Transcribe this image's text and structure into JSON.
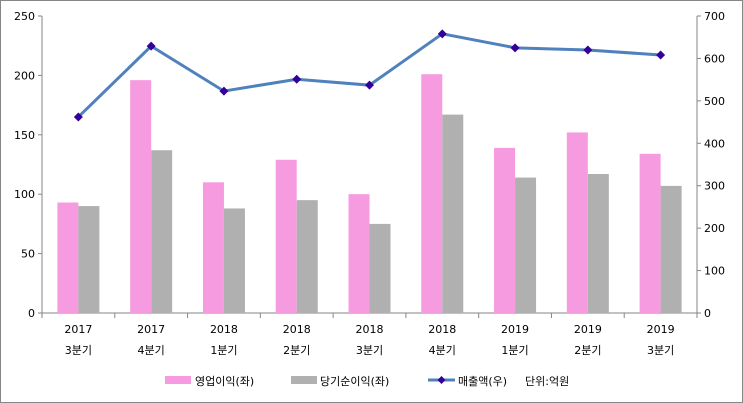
{
  "chart_data": {
    "type": "bar",
    "categories": [
      [
        "2017",
        "3분기"
      ],
      [
        "2017",
        "4분기"
      ],
      [
        "2018",
        "1분기"
      ],
      [
        "2018",
        "2분기"
      ],
      [
        "2018",
        "3분기"
      ],
      [
        "2018",
        "4분기"
      ],
      [
        "2019",
        "1분기"
      ],
      [
        "2019",
        "2분기"
      ],
      [
        "2019",
        "3분기"
      ]
    ],
    "series": [
      {
        "name": "영업이익(좌)",
        "type": "bar",
        "axis": "left",
        "color": "#f79be0",
        "values": [
          93,
          196,
          110,
          129,
          100,
          201,
          139,
          152,
          134
        ]
      },
      {
        "name": "당기순이익(좌)",
        "type": "bar",
        "axis": "left",
        "color": "#b0b0b0",
        "values": [
          90,
          137,
          88,
          95,
          75,
          167,
          114,
          117,
          107
        ]
      },
      {
        "name": "매출액(우)",
        "type": "line",
        "axis": "right",
        "color": "#4f81bd",
        "marker_color": "#330099",
        "values": [
          462,
          629,
          523,
          551,
          537,
          658,
          625,
          620,
          608
        ]
      }
    ],
    "left_axis": {
      "ylim": [
        0,
        250
      ],
      "ticks": [
        0,
        50,
        100,
        150,
        200,
        250
      ]
    },
    "right_axis": {
      "ylim": [
        0,
        700
      ],
      "ticks": [
        0,
        100,
        200,
        300,
        400,
        500,
        600,
        700
      ]
    },
    "unit_note": "단위:억원",
    "legend": "bottom",
    "grid": false
  }
}
